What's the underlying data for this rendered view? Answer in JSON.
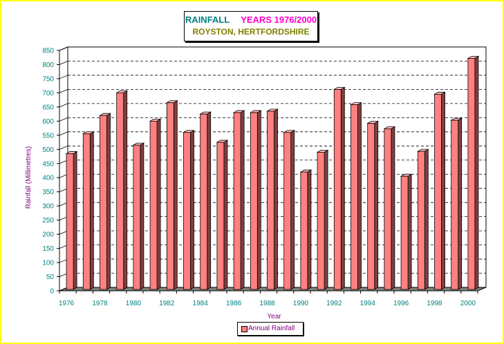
{
  "chart_data": {
    "type": "bar",
    "title": "RAINFALL",
    "subtitle_years": "YEARS 1976/2000",
    "subtitle_location": "ROYSTON, HERTFORDSHIRE",
    "xlabel": "Year",
    "ylabel": "Rainfall (Millimetres)",
    "ylim": [
      0,
      850
    ],
    "yticks": [
      0,
      50,
      100,
      150,
      200,
      250,
      300,
      350,
      400,
      450,
      500,
      550,
      600,
      650,
      700,
      750,
      800,
      850
    ],
    "categories": [
      1976,
      1977,
      1978,
      1979,
      1980,
      1981,
      1982,
      1983,
      1984,
      1985,
      1986,
      1987,
      1988,
      1989,
      1990,
      1991,
      1992,
      1993,
      1994,
      1995,
      1996,
      1997,
      1998,
      1999,
      2000
    ],
    "xtick_labels": [
      "1976",
      "",
      "1978",
      "",
      "1980",
      "",
      "1982",
      "",
      "1984",
      "",
      "1986",
      "",
      "1988",
      "",
      "1990",
      "",
      "1992",
      "",
      "1994",
      "",
      "1996",
      "",
      "1998",
      "",
      "2000"
    ],
    "series": [
      {
        "name": "Annual Rainfall",
        "color": "#ff8080",
        "values": [
          485,
          555,
          620,
          700,
          515,
          600,
          665,
          560,
          625,
          525,
          630,
          630,
          635,
          560,
          420,
          490,
          712,
          658,
          592,
          573,
          405,
          493,
          695,
          603,
          822
        ]
      }
    ],
    "grid": "horizontal dashed",
    "legend_position": "bottom-center",
    "colors": {
      "frame_border": "#ffff00",
      "floor": "#808080",
      "bar_front": "#ff8080",
      "bar_side": "#804040",
      "bar_top": "#ffc0c0",
      "tick_text": "#008080",
      "axis_title": "#800080",
      "title_rainfall": "#008080",
      "title_years": "#ff00cc",
      "title_location": "#808000"
    }
  }
}
